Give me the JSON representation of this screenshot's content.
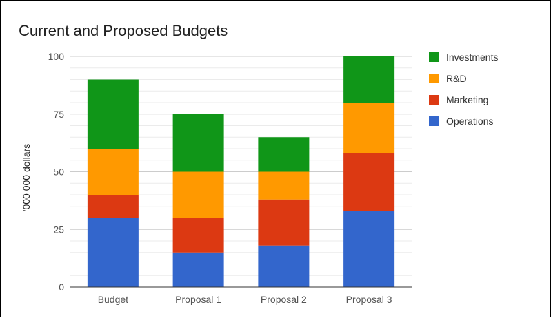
{
  "chart_data": {
    "type": "bar",
    "stacked": true,
    "title": "Current and Proposed Budgets",
    "xlabel": "",
    "ylabel": "'000 000 dollars",
    "ylim": [
      0,
      100
    ],
    "yticks": [
      0,
      25,
      50,
      75,
      100
    ],
    "minor_grid_step": 5,
    "grid": true,
    "legend_position": "right",
    "categories": [
      "Budget",
      "Proposal 1",
      "Proposal 2",
      "Proposal 3"
    ],
    "series": [
      {
        "name": "Operations",
        "color": "#3366cc",
        "values": [
          30,
          15,
          18,
          33
        ]
      },
      {
        "name": "Marketing",
        "color": "#dc3912",
        "values": [
          10,
          15,
          20,
          25
        ]
      },
      {
        "name": "R&D",
        "color": "#ff9900",
        "values": [
          20,
          20,
          12,
          22
        ]
      },
      {
        "name": "Investments",
        "color": "#109618",
        "values": [
          30,
          25,
          15,
          20
        ]
      }
    ],
    "legend_order": [
      "Investments",
      "R&D",
      "Marketing",
      "Operations"
    ]
  }
}
